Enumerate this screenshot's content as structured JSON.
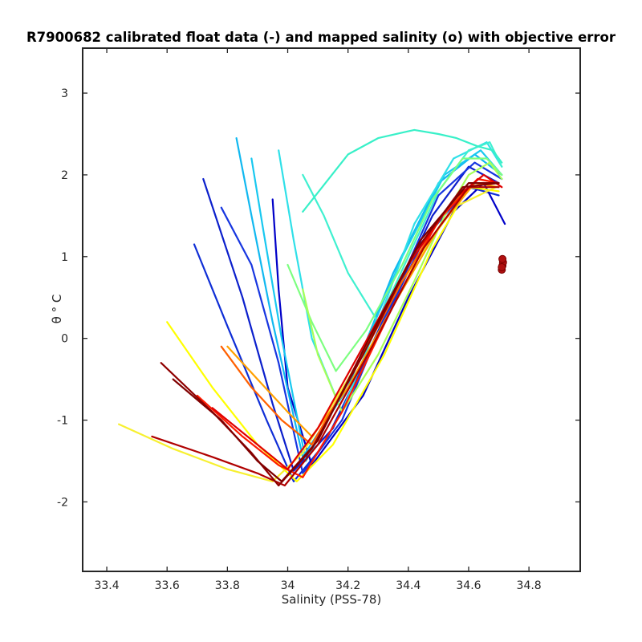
{
  "chart_data": {
    "type": "line",
    "title": "R7900682 calibrated float data (-) and mapped salinity (o) with objective error",
    "xlabel": "Salinity (PSS-78)",
    "ylabel": "θ ° C",
    "xlim": [
      33.32,
      34.97
    ],
    "ylim": [
      -2.85,
      3.55
    ],
    "x_ticks": [
      "33.4",
      "33.6",
      "33.8",
      "34",
      "34.2",
      "34.4",
      "34.6",
      "34.8"
    ],
    "y_ticks": [
      "-2",
      "-1",
      "0",
      "1",
      "2",
      "3"
    ],
    "grid": false,
    "colormap": "jet",
    "colormap_stops": [
      "#00008f",
      "#0000ff",
      "#00ffff",
      "#7fff7f",
      "#ffff00",
      "#ff0000",
      "#800000"
    ],
    "series": [
      {
        "color": "#0b1fcc",
        "x": [
          33.72,
          33.85,
          33.95,
          34.02,
          34.15,
          34.32,
          34.48,
          34.6,
          34.7
        ],
        "y": [
          1.95,
          0.5,
          -0.8,
          -1.62,
          -1.1,
          0.25,
          1.5,
          2.1,
          1.9
        ]
      },
      {
        "color": "#0f2ed6",
        "x": [
          33.69,
          33.8,
          33.93,
          34.02,
          34.12,
          34.28,
          34.45,
          34.6,
          34.7
        ],
        "y": [
          1.15,
          0.15,
          -1.0,
          -1.75,
          -1.3,
          -0.1,
          1.2,
          1.85,
          1.75
        ]
      },
      {
        "color": "#1736e0",
        "x": [
          33.78,
          33.88,
          33.97,
          34.05,
          34.18,
          34.35,
          34.5,
          34.62,
          34.71
        ],
        "y": [
          1.6,
          0.9,
          -0.3,
          -1.65,
          -1.0,
          0.5,
          1.75,
          2.15,
          1.95
        ]
      },
      {
        "color": "#0000c8",
        "x": [
          33.95,
          33.97,
          34.0,
          34.08,
          34.25,
          34.4,
          34.55,
          34.65,
          34.72
        ],
        "y": [
          1.7,
          0.6,
          -0.6,
          -1.55,
          -0.7,
          0.5,
          1.55,
          1.9,
          1.4
        ]
      },
      {
        "color": "#10b8f0",
        "x": [
          33.83,
          33.88,
          33.95,
          34.05,
          34.2,
          34.35,
          34.5,
          34.62,
          34.71
        ],
        "y": [
          2.45,
          1.5,
          0.2,
          -1.45,
          -0.6,
          0.8,
          1.9,
          2.25,
          2.0
        ]
      },
      {
        "color": "#18c8f0",
        "x": [
          33.88,
          33.92,
          33.98,
          34.06,
          34.22,
          34.38,
          34.52,
          34.64,
          34.71
        ],
        "y": [
          2.2,
          1.3,
          0.0,
          -1.5,
          -0.4,
          1.0,
          2.0,
          2.3,
          2.0
        ]
      },
      {
        "color": "#30e0e8",
        "x": [
          33.97,
          34.02,
          34.08,
          34.18,
          34.3,
          34.42,
          34.55,
          34.66,
          34.71
        ],
        "y": [
          2.3,
          1.2,
          0.0,
          -0.9,
          0.2,
          1.4,
          2.2,
          2.4,
          2.1
        ]
      },
      {
        "color": "#40f0d0",
        "x": [
          34.05,
          34.12,
          34.2,
          34.3,
          34.4,
          34.5,
          34.6,
          34.67,
          34.71
        ],
        "y": [
          2.0,
          1.5,
          0.8,
          0.2,
          1.0,
          1.8,
          2.3,
          2.4,
          2.1
        ]
      },
      {
        "color": "#38f0c8",
        "x": [
          34.05,
          34.2,
          34.3,
          34.42,
          34.5,
          34.56,
          34.63,
          34.68,
          34.71
        ],
        "y": [
          1.55,
          2.25,
          2.45,
          2.55,
          2.5,
          2.45,
          2.35,
          2.3,
          2.15
        ]
      },
      {
        "color": "#7dff80",
        "x": [
          34.0,
          34.08,
          34.16,
          34.26,
          34.38,
          34.48,
          34.58,
          34.66,
          34.71
        ],
        "y": [
          0.9,
          0.2,
          -0.4,
          0.1,
          0.9,
          1.7,
          2.2,
          2.2,
          2.0
        ]
      },
      {
        "color": "#a8ff58",
        "x": [
          34.05,
          34.1,
          34.18,
          34.3,
          34.42,
          34.52,
          34.6,
          34.67,
          34.71
        ],
        "y": [
          0.6,
          -0.2,
          -0.9,
          -0.2,
          0.7,
          1.5,
          2.0,
          2.15,
          1.95
        ]
      },
      {
        "color": "#ffff00",
        "x": [
          33.6,
          33.75,
          33.9,
          34.03,
          34.15,
          34.32,
          34.48,
          34.6,
          34.7
        ],
        "y": [
          0.2,
          -0.6,
          -1.3,
          -1.75,
          -1.3,
          -0.2,
          1.1,
          1.85,
          1.8
        ]
      },
      {
        "color": "#f7f030",
        "x": [
          33.44,
          33.62,
          33.8,
          33.95,
          34.05,
          34.2,
          34.38,
          34.55,
          34.69
        ],
        "y": [
          -1.05,
          -1.35,
          -1.6,
          -1.75,
          -1.4,
          -0.5,
          0.7,
          1.6,
          1.85
        ]
      },
      {
        "color": "#ffa000",
        "x": [
          33.8,
          33.9,
          34.0,
          34.08,
          34.2,
          34.35,
          34.5,
          34.62,
          34.7
        ],
        "y": [
          -0.1,
          -0.5,
          -0.9,
          -1.2,
          -0.6,
          0.4,
          1.35,
          1.9,
          1.85
        ]
      },
      {
        "color": "#ff6000",
        "x": [
          33.78,
          33.88,
          33.98,
          34.08,
          34.22,
          34.38,
          34.52,
          34.63,
          34.7
        ],
        "y": [
          -0.1,
          -0.6,
          -1.0,
          -1.3,
          -0.4,
          0.7,
          1.55,
          1.95,
          1.9
        ]
      },
      {
        "color": "#ff1a00",
        "x": [
          33.7,
          33.85,
          33.97,
          34.05,
          34.18,
          34.35,
          34.5,
          34.63,
          34.7
        ],
        "y": [
          -0.7,
          -1.2,
          -1.55,
          -1.7,
          -0.9,
          0.4,
          1.45,
          1.95,
          1.9
        ]
      },
      {
        "color": "#e00000",
        "x": [
          33.75,
          33.9,
          34.0,
          34.1,
          34.25,
          34.4,
          34.55,
          34.65,
          34.71
        ],
        "y": [
          -0.85,
          -1.3,
          -1.6,
          -1.1,
          -0.1,
          0.9,
          1.7,
          2.0,
          1.85
        ]
      },
      {
        "color": "#b00000",
        "x": [
          33.55,
          33.75,
          33.9,
          33.99,
          34.1,
          34.28,
          34.45,
          34.6,
          34.7
        ],
        "y": [
          -1.2,
          -1.45,
          -1.65,
          -1.8,
          -1.3,
          -0.1,
          1.1,
          1.85,
          1.85
        ]
      },
      {
        "color": "#8f0000",
        "x": [
          33.58,
          33.75,
          33.88,
          33.97,
          34.08,
          34.25,
          34.42,
          34.58,
          34.7
        ],
        "y": [
          -0.3,
          -0.9,
          -1.4,
          -1.8,
          -1.35,
          -0.2,
          1.05,
          1.85,
          1.9
        ]
      },
      {
        "color": "#800000",
        "x": [
          33.62,
          33.78,
          33.9,
          33.98,
          34.1,
          34.27,
          34.44,
          34.6,
          34.7
        ],
        "y": [
          -0.5,
          -1.0,
          -1.5,
          -1.75,
          -1.25,
          0.0,
          1.2,
          1.9,
          1.9
        ]
      }
    ],
    "mapped": {
      "color": "#b01010",
      "x": [
        34.71,
        34.712,
        34.714,
        34.712,
        34.71
      ],
      "y": [
        0.84,
        0.89,
        0.93,
        0.97,
        0.87
      ]
    }
  }
}
